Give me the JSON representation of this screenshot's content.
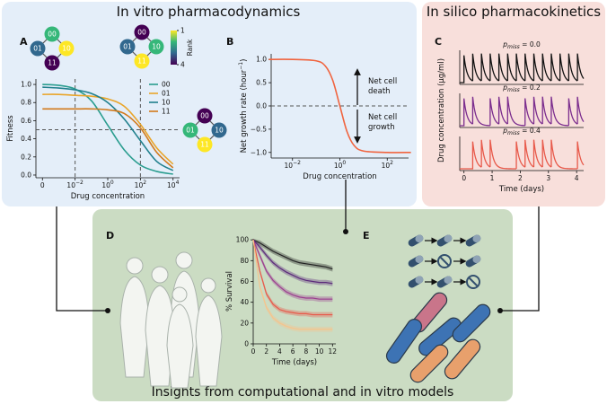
{
  "title_vitro": "In vitro pharmacodynamics",
  "title_silico": "In silico pharmacokinetics",
  "title_insights": "Insights from computational and in vitro models",
  "letters": [
    "A",
    "B",
    "C",
    "D",
    "E"
  ],
  "panel_a": {
    "networks": [
      {
        "nodes": [
          {
            "label": "00",
            "rank": 2
          },
          {
            "label": "01",
            "rank": 3
          },
          {
            "label": "10",
            "rank": 1
          },
          {
            "label": "11",
            "rank": 4
          }
        ]
      },
      {
        "nodes": [
          {
            "label": "00",
            "rank": 4
          },
          {
            "label": "01",
            "rank": 3
          },
          {
            "label": "10",
            "rank": 2
          },
          {
            "label": "11",
            "rank": 1
          }
        ]
      },
      {
        "nodes": [
          {
            "label": "00",
            "rank": 4
          },
          {
            "label": "01",
            "rank": 2
          },
          {
            "label": "10",
            "rank": 3
          },
          {
            "label": "11",
            "rank": 1
          }
        ]
      }
    ],
    "colorbar": {
      "label": "Rank",
      "ticks": [
        1,
        4
      ]
    }
  },
  "panel_b": {
    "annotations": [
      {
        "lines": [
          "Net cell",
          "death"
        ]
      },
      {
        "lines": [
          "Net cell",
          "growth"
        ]
      }
    ]
  },
  "panel_c": {
    "ylabel": "Drug concentration (μg/ml)"
  },
  "chart_data": [
    {
      "type": "line",
      "xlabel": "Drug concentration",
      "ylabel": "Fitness",
      "x": [
        -4,
        -3,
        -2,
        -1,
        0,
        1,
        2,
        3,
        4
      ],
      "series": [
        {
          "name": "00",
          "color": "#2a9d8f",
          "values": [
            1.0,
            0.99,
            0.95,
            0.82,
            0.55,
            0.28,
            0.11,
            0.04,
            0.01
          ]
        },
        {
          "name": "01",
          "color": "#e9a52a",
          "values": [
            0.89,
            0.89,
            0.88,
            0.87,
            0.84,
            0.76,
            0.56,
            0.3,
            0.12
          ]
        },
        {
          "name": "10",
          "color": "#21808d",
          "values": [
            0.97,
            0.96,
            0.94,
            0.9,
            0.8,
            0.62,
            0.38,
            0.15,
            0.05
          ]
        },
        {
          "name": "11",
          "color": "#d27a1c",
          "values": [
            0.73,
            0.73,
            0.73,
            0.73,
            0.72,
            0.68,
            0.52,
            0.25,
            0.08
          ]
        }
      ],
      "xlim": [
        -4.4,
        4.4
      ],
      "ylim": [
        -0.03,
        1.06
      ],
      "xticks": [
        {
          "value": -4,
          "label": "0"
        },
        {
          "value": -2,
          "label": "10",
          "exponent": "−2"
        },
        {
          "value": 0,
          "label": "10",
          "exponent": "0"
        },
        {
          "value": 2,
          "label": "10",
          "exponent": "2"
        },
        {
          "value": 4,
          "label": "10",
          "exponent": "4"
        }
      ],
      "yticks": [
        {
          "value": 0,
          "label": "0.0"
        },
        0.2,
        0.4,
        0.6,
        0.8,
        {
          "value": 1,
          "label": "1.0"
        }
      ],
      "ref_lines": {
        "x": [
          -2,
          2
        ],
        "y": [
          0.5
        ]
      },
      "legend": "upper right"
    },
    {
      "type": "line",
      "xlabel": "Drug concentration",
      "ylabel": {
        "text": "Net growth rate (hour",
        "exponent": "−1",
        "suffix": ")"
      },
      "x": [
        -3,
        -2,
        -1,
        -0.6,
        -0.3,
        0,
        0.3,
        0.6,
        1,
        2,
        3
      ],
      "series": [
        {
          "color": "#f0643f",
          "values": [
            1.0,
            1.0,
            0.97,
            0.85,
            0.55,
            0,
            -0.55,
            -0.85,
            -0.97,
            -1.0,
            -1.0
          ]
        }
      ],
      "xlim": [
        -2.9,
        2.9
      ],
      "ylim": [
        -1.12,
        1.12
      ],
      "xticks": [
        {
          "value": -2,
          "label": "10",
          "exponent": "−2"
        },
        {
          "value": 0,
          "label": "10",
          "exponent": "0"
        },
        {
          "value": 2,
          "label": "10",
          "exponent": "2"
        }
      ],
      "yticks": [
        {
          "value": -1,
          "label": "−1.0"
        },
        {
          "value": -0.5,
          "label": "−0.5"
        },
        {
          "value": 0,
          "label": "0.0"
        },
        0.5,
        {
          "value": 1,
          "label": "1.0"
        }
      ],
      "ref_lines": {
        "y": [
          0
        ]
      }
    },
    {
      "type": "pk",
      "title": {
        "symbol": "p",
        "subscript": "miss",
        "text": " = 0.0"
      },
      "color": "#111111",
      "dose_times": [
        0,
        0.31,
        0.62,
        0.93,
        1.24,
        1.55,
        1.86,
        2.17,
        2.48,
        2.79,
        3.1,
        3.41,
        3.72,
        4.03
      ],
      "xlim": [
        -0.15,
        4.25
      ]
    },
    {
      "type": "pk",
      "title": {
        "symbol": "p",
        "subscript": "miss",
        "text": " = 0.2"
      },
      "color": "#7b2d8e",
      "dose_times": [
        0,
        0.31,
        0.93,
        1.24,
        1.55,
        2.17,
        2.48,
        2.79,
        3.1,
        3.72,
        4.03
      ],
      "xlim": [
        -0.15,
        4.25
      ]
    },
    {
      "type": "pk",
      "title": {
        "symbol": "p",
        "subscript": "miss",
        "text": " = 0.4"
      },
      "color": "#e8594a",
      "dose_times": [
        0.31,
        0.62,
        0.93,
        1.86,
        2.17,
        2.48,
        2.79,
        3.1,
        4.03
      ],
      "xlim": [
        -0.15,
        4.25
      ],
      "xticks": [
        0,
        1,
        2,
        3,
        4
      ],
      "xlabel": "Time (days)"
    },
    {
      "type": "survival",
      "xlabel": "Time (days)",
      "ylabel": "% Survival",
      "x": [
        0,
        1,
        2,
        3,
        4,
        5,
        6,
        7,
        8,
        9,
        10,
        11,
        12
      ],
      "series": [
        {
          "color": "#222222",
          "ci": 2.5,
          "values": [
            100,
            97,
            93,
            89,
            86,
            83,
            80,
            78,
            77,
            76,
            75,
            74,
            72
          ]
        },
        {
          "color": "#5b2a7a",
          "ci": 2.5,
          "values": [
            100,
            93,
            85,
            78,
            73,
            69,
            66,
            63,
            61,
            60,
            59,
            59,
            58
          ]
        },
        {
          "color": "#9c3f8f",
          "ci": 2.5,
          "values": [
            100,
            85,
            70,
            61,
            55,
            50,
            47,
            45,
            44,
            44,
            43,
            43,
            43
          ]
        },
        {
          "color": "#e8594a",
          "ci": 2.5,
          "values": [
            100,
            70,
            48,
            38,
            33,
            31,
            30,
            29,
            29,
            28,
            28,
            28,
            28
          ]
        },
        {
          "color": "#f6c48c",
          "ci": 2.5,
          "values": [
            100,
            55,
            35,
            25,
            20,
            17,
            15,
            14,
            14,
            14,
            14,
            14,
            14
          ]
        }
      ],
      "xlim": [
        0,
        12.5
      ],
      "ylim": [
        0,
        101
      ],
      "xticks": [
        0,
        2,
        4,
        6,
        8,
        10,
        12
      ],
      "yticks": [
        0,
        20,
        40,
        60,
        80,
        100
      ]
    }
  ]
}
